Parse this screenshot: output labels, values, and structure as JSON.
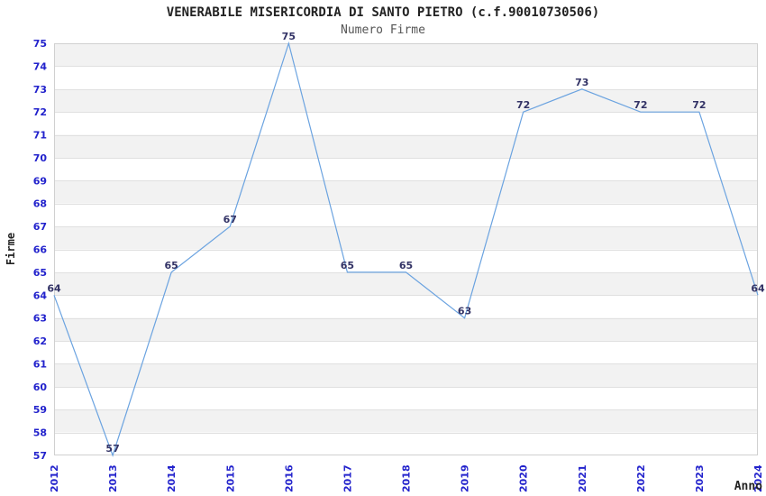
{
  "header": {
    "title": "VENERABILE MISERICORDIA DI SANTO PIETRO (c.f.90010730506)",
    "subtitle": "Numero Firme"
  },
  "chart_data": {
    "type": "line",
    "title": "VENERABILE MISERICORDIA DI SANTO PIETRO (c.f.90010730506)",
    "subtitle": "Numero Firme",
    "xlabel": "Anno",
    "ylabel": "Firme",
    "categories": [
      "2012",
      "2013",
      "2014",
      "2015",
      "2016",
      "2017",
      "2018",
      "2019",
      "2020",
      "2021",
      "2022",
      "2023",
      "2024"
    ],
    "values": [
      64,
      57,
      65,
      67,
      75,
      65,
      65,
      63,
      72,
      73,
      72,
      72,
      64
    ],
    "ylim": [
      57,
      75
    ],
    "y_tick_step": 1,
    "grid": "horizontal-bands",
    "legend": "none",
    "data_labels_shown": true,
    "colors": {
      "line": "#6BA3E0",
      "tick_label": "#2222CC",
      "data_label": "#333366",
      "band_fill": "#F2F2F2",
      "grid_line": "#E0E0E0",
      "plot_border": "#D0D0D0",
      "title": "#222222",
      "subtitle": "#555555",
      "axis_title": "#222222",
      "background": "#FFFFFF"
    }
  }
}
